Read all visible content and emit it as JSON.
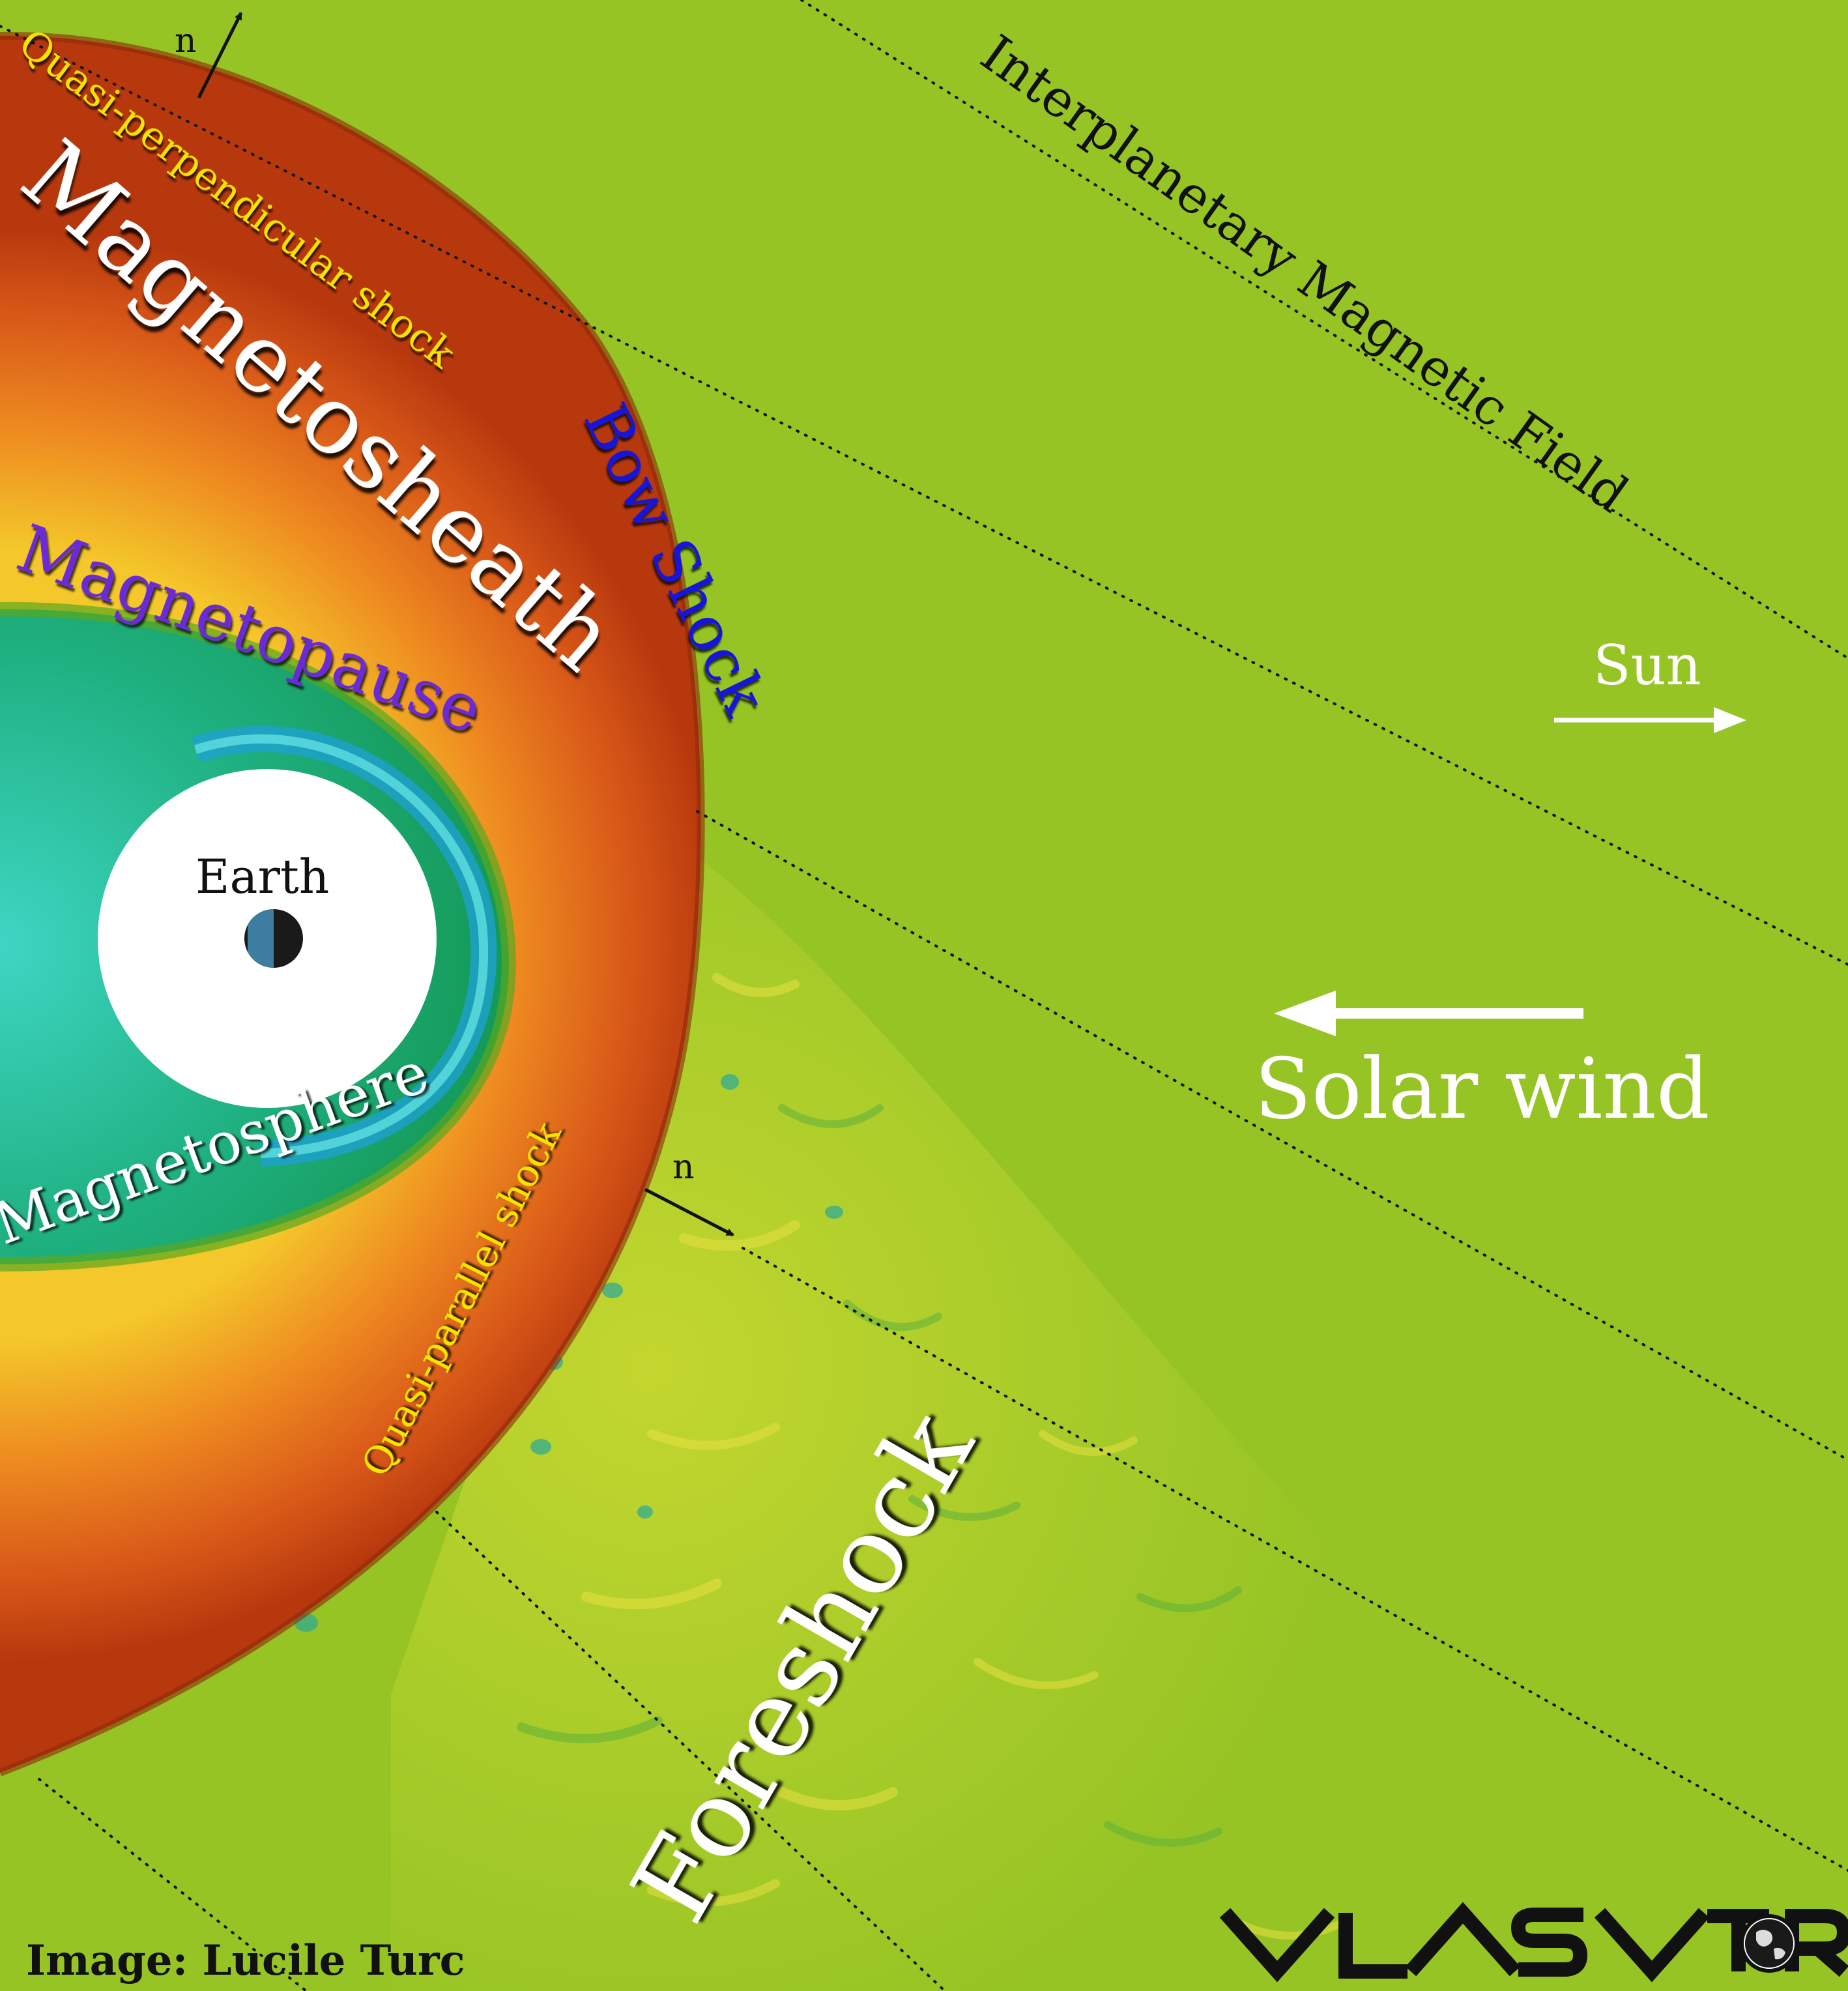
{
  "labels": {
    "magnetosheath": "Magnetosheath",
    "magnetopause": "Magnetopause",
    "magnetosphere": "Magnetosphere",
    "earth": "Earth",
    "bow_shock": "Bow Shock",
    "quasi_perpendicular": "Quasi-perpendicular shock",
    "quasi_parallel": "Quasi-parallel shock",
    "foreshock": "Foreshock",
    "imf": "Interplanetary Magnetic Field",
    "sun": "Sun",
    "solar_wind": "Solar wind",
    "normal_top": "n",
    "normal_bottom": "n",
    "credit": "Image: Lucile Turc",
    "logo": "VLASIATOR"
  },
  "colors": {
    "solar_wind_bg": "#96c424",
    "magnetosheath": "#e06a1c",
    "magnetosheath_dark": "#b8380e",
    "magnetosheath_edge": "#f2d21e",
    "magnetosphere": "#1fa86a",
    "magnetosphere_inner": "#3ed6c4",
    "inner_ring": "#2bb8d8",
    "earth_core": "#ffffff",
    "label_white": "#ffffff",
    "label_black": "#111111",
    "label_yellow": "#f5e400",
    "label_blue": "#1414d8",
    "label_purple": "#6a2ad8"
  }
}
